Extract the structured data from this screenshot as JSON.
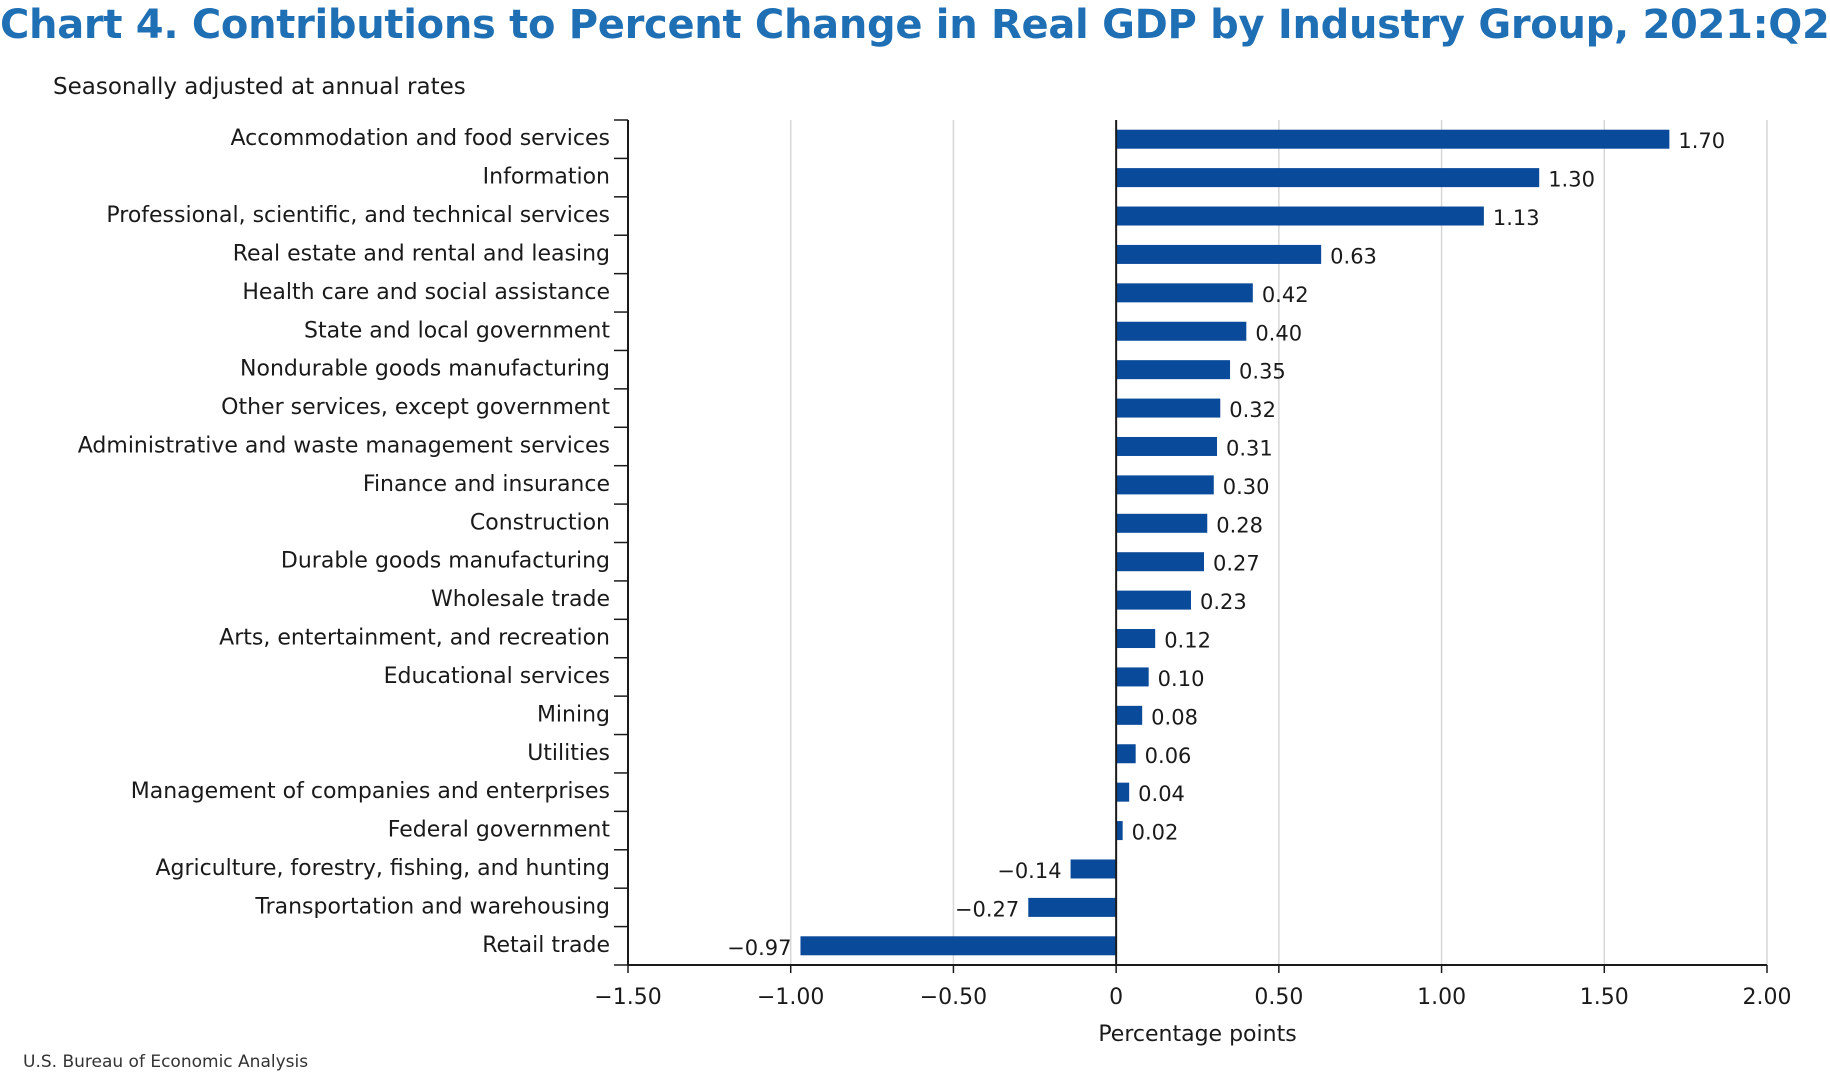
{
  "header": {
    "title": "Chart 4. Contributions to Percent Change in Real GDP by Industry Group, 2021:Q2",
    "subtitle": "Seasonally adjusted at annual rates"
  },
  "footer": {
    "source": "U.S. Bureau of Economic Analysis"
  },
  "chart_data": {
    "type": "bar",
    "orientation": "horizontal",
    "title": "Chart 4. Contributions to Percent Change in Real GDP by Industry Group, 2021:Q2",
    "subtitle": "Seasonally adjusted at annual rates",
    "xlabel": "Percentage points",
    "ylabel": "",
    "xlim": [
      -1.5,
      2.0
    ],
    "x_ticks": [
      -1.5,
      -1.0,
      -0.5,
      0,
      0.5,
      1.0,
      1.5,
      2.0
    ],
    "x_tick_labels": [
      "−1.50",
      "−1.00",
      "−0.50",
      "0",
      "0.50",
      "1.00",
      "1.50",
      "2.00"
    ],
    "grid": "vertical gridlines",
    "bar_color": "#0a4a9a",
    "categories": [
      "Accommodation and food services",
      "Information",
      "Professional, scientific, and technical services",
      "Real estate and rental and leasing",
      "Health care and social assistance",
      "State and local government",
      "Nondurable goods manufacturing",
      "Other services, except government",
      "Administrative and waste management services",
      "Finance and insurance",
      "Construction",
      "Durable goods manufacturing",
      "Wholesale trade",
      "Arts, entertainment, and recreation",
      "Educational services",
      "Mining",
      "Utilities",
      "Management of companies and enterprises",
      "Federal government",
      "Agriculture, forestry, fishing, and hunting",
      "Transportation and warehousing",
      "Retail trade"
    ],
    "values": [
      1.7,
      1.3,
      1.13,
      0.63,
      0.42,
      0.4,
      0.35,
      0.32,
      0.31,
      0.3,
      0.28,
      0.27,
      0.23,
      0.12,
      0.1,
      0.08,
      0.06,
      0.04,
      0.02,
      -0.14,
      -0.27,
      -0.97
    ],
    "value_labels": [
      "1.70",
      "1.30",
      "1.13",
      "0.63",
      "0.42",
      "0.40",
      "0.35",
      "0.32",
      "0.31",
      "0.30",
      "0.28",
      "0.27",
      "0.23",
      "0.12",
      "0.10",
      "0.08",
      "0.06",
      "0.04",
      "0.02",
      "−0.14",
      "−0.27",
      "−0.97"
    ]
  }
}
